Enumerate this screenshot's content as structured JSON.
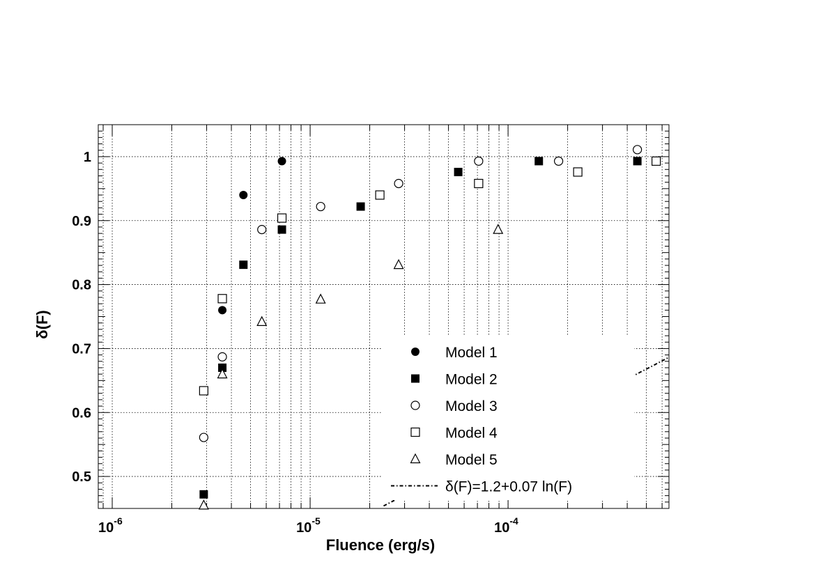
{
  "chart_data": {
    "type": "scatter",
    "title": "",
    "xlabel": "Fluence (erg/s)",
    "ylabel": "δ(F)",
    "x_scale": "log",
    "xlim": [
      8.5e-07,
      0.00065
    ],
    "ylim": [
      0.45,
      1.05
    ],
    "grid": true,
    "legend_position": "bottom-right",
    "x_ticks": [
      {
        "value": 1e-06,
        "base": "10",
        "exp": "-6"
      },
      {
        "value": 1e-05,
        "base": "10",
        "exp": "-5"
      },
      {
        "value": 0.0001,
        "base": "10",
        "exp": "-4"
      }
    ],
    "y_ticks": [
      {
        "value": 0.5,
        "label": "0.5"
      },
      {
        "value": 0.6,
        "label": "0.6"
      },
      {
        "value": 0.7,
        "label": "0.7"
      },
      {
        "value": 0.8,
        "label": "0.8"
      },
      {
        "value": 0.9,
        "label": "0.9"
      },
      {
        "value": 1.0,
        "label": "1"
      }
    ],
    "series": [
      {
        "name": "Model 1",
        "marker": "filled-circle",
        "points": [
          {
            "x": 3.6e-06,
            "y": 0.76
          },
          {
            "x": 4.6e-06,
            "y": 0.94
          },
          {
            "x": 7.2e-06,
            "y": 0.993
          }
        ]
      },
      {
        "name": "Model 2",
        "marker": "filled-square",
        "points": [
          {
            "x": 2.9e-06,
            "y": 0.472
          },
          {
            "x": 3.6e-06,
            "y": 0.67
          },
          {
            "x": 4.6e-06,
            "y": 0.831
          },
          {
            "x": 7.2e-06,
            "y": 0.886
          },
          {
            "x": 1.8e-05,
            "y": 0.922
          },
          {
            "x": 5.6e-05,
            "y": 0.976
          },
          {
            "x": 0.000143,
            "y": 0.993
          },
          {
            "x": 0.00045,
            "y": 0.993
          }
        ]
      },
      {
        "name": "Model 3",
        "marker": "open-circle",
        "points": [
          {
            "x": 2.9e-06,
            "y": 0.561
          },
          {
            "x": 3.6e-06,
            "y": 0.687
          },
          {
            "x": 5.7e-06,
            "y": 0.886
          },
          {
            "x": 1.13e-05,
            "y": 0.922
          },
          {
            "x": 2.8e-05,
            "y": 0.958
          },
          {
            "x": 7.1e-05,
            "y": 0.993
          },
          {
            "x": 0.00018,
            "y": 0.993
          },
          {
            "x": 0.00045,
            "y": 1.011
          }
        ]
      },
      {
        "name": "Model 4",
        "marker": "open-square",
        "points": [
          {
            "x": 2.9e-06,
            "y": 0.634
          },
          {
            "x": 3.6e-06,
            "y": 0.778
          },
          {
            "x": 7.2e-06,
            "y": 0.904
          },
          {
            "x": 2.25e-05,
            "y": 0.94
          },
          {
            "x": 7.1e-05,
            "y": 0.958
          },
          {
            "x": 0.000225,
            "y": 0.976
          },
          {
            "x": 0.00056,
            "y": 0.993
          }
        ]
      },
      {
        "name": "Model 5",
        "marker": "open-triangle",
        "points": [
          {
            "x": 2.9e-06,
            "y": 0.455
          },
          {
            "x": 3.6e-06,
            "y": 0.66
          },
          {
            "x": 5.7e-06,
            "y": 0.742
          },
          {
            "x": 1.13e-05,
            "y": 0.777
          },
          {
            "x": 2.8e-05,
            "y": 0.831
          },
          {
            "x": 8.9e-05,
            "y": 0.886
          }
        ]
      }
    ],
    "fit_line": {
      "name": "δ(F)=1.2+0.07 ln(F)",
      "intercept": 1.2,
      "slope": 0.07,
      "style": "dash-dot"
    }
  }
}
